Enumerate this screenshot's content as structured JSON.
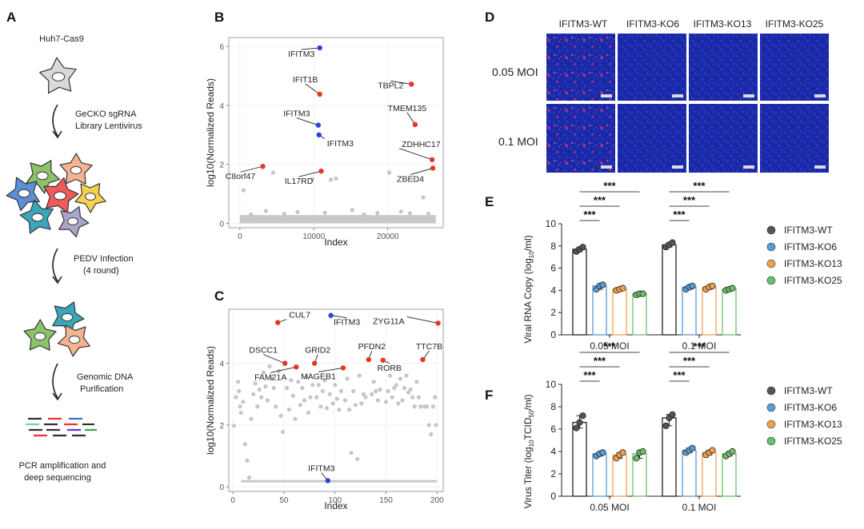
{
  "panel_letters": {
    "A": "A",
    "B": "B",
    "C": "C",
    "D": "D",
    "E": "E",
    "F": "F"
  },
  "workflow": {
    "cell_line": "Huh7-Cas9",
    "step1_line1": "GeCKO sgRNA",
    "step1_line2": "Library Lentivirus",
    "step2_line1": "PEDV  Infection",
    "step2_line2": "(4 round)",
    "step3_line1": "Genomic DNA",
    "step3_line2": "Purification",
    "final_line1": "PCR amplification and",
    "final_line2": "deep sequencing",
    "colors": {
      "cell_gray": "#d9d9d9",
      "green": "#8dc26a",
      "orange": "#f3b48f",
      "blue": "#5b8fd6",
      "red": "#ef5a5a",
      "yellow": "#f5d24c",
      "teal": "#3aa6b9",
      "lavender": "#a8a6c6"
    }
  },
  "panelD": {
    "col_headers": [
      "IFITM3-WT",
      "IFITM3-KO6",
      "IFITM3-KO13",
      "IFITM3-KO25"
    ],
    "row_labels": [
      "0.05 MOI",
      "0.1 MOI"
    ]
  },
  "chart_data": [
    {
      "id": "B",
      "type": "scatter",
      "title": "",
      "xlabel": "Index",
      "ylabel": "log10(Normalized Reads)",
      "xlim": [
        -1500,
        27500
      ],
      "ylim": [
        -0.15,
        6.3
      ],
      "xticks": [
        0,
        10000,
        20000
      ],
      "yticks": [
        0,
        2,
        4,
        6
      ],
      "highlighted": [
        {
          "label": "IFITM3",
          "x": 10800,
          "y": 5.95,
          "color": "#2b44d6"
        },
        {
          "label": "IFIT1B",
          "x": 10800,
          "y": 4.38,
          "color": "#e8361e"
        },
        {
          "label": "TBPL2",
          "x": 23200,
          "y": 4.72,
          "color": "#e8361e"
        },
        {
          "label": "IFITM3",
          "x": 10600,
          "y": 3.33,
          "color": "#2b44d6"
        },
        {
          "label": "IFITM3",
          "x": 10700,
          "y": 3.0,
          "color": "#2b44d6"
        },
        {
          "label": "TMEM135",
          "x": 23700,
          "y": 3.35,
          "color": "#e8361e"
        },
        {
          "label": "C8orf47",
          "x": 3100,
          "y": 1.93,
          "color": "#e8361e"
        },
        {
          "label": "IL17RD",
          "x": 11000,
          "y": 1.77,
          "color": "#e8361e"
        },
        {
          "label": "ZDHHC17",
          "x": 26000,
          "y": 2.16,
          "color": "#e8361e"
        },
        {
          "label": "ZBED4",
          "x": 26100,
          "y": 1.87,
          "color": "#e8361e"
        }
      ],
      "background_points": [
        [
          500,
          1.12
        ],
        [
          4500,
          1.72
        ],
        [
          9800,
          1.5
        ],
        [
          12300,
          1.48
        ],
        [
          13000,
          1.52
        ],
        [
          20200,
          1.72
        ],
        [
          24800,
          0.88
        ],
        [
          3500,
          0.42
        ],
        [
          7800,
          0.38
        ],
        [
          15200,
          0.45
        ],
        [
          18600,
          0.35
        ],
        [
          21800,
          0.4
        ],
        [
          25500,
          0.33
        ],
        [
          1500,
          0.3
        ],
        [
          6000,
          0.32
        ],
        [
          11500,
          0.36
        ],
        [
          16800,
          0.3
        ],
        [
          23000,
          0.34
        ]
      ],
      "baseline_band": {
        "x_from": 0,
        "x_to": 26500,
        "y_from": 0,
        "y_to": 0.28
      }
    },
    {
      "id": "C",
      "type": "scatter",
      "title": "",
      "xlabel": "Index",
      "ylabel": "log10(Normalized Reads)",
      "xlim": [
        -4,
        206
      ],
      "ylim": [
        -0.15,
        5.75
      ],
      "xticks": [
        0,
        50,
        100,
        150,
        200
      ],
      "yticks": [
        0,
        2,
        4
      ],
      "highlighted": [
        {
          "label": "CUL7",
          "x": 44,
          "y": 5.32,
          "color": "#e8361e"
        },
        {
          "label": "IFITM3",
          "x": 96,
          "y": 5.55,
          "color": "#2b44d6"
        },
        {
          "label": "ZYG11A",
          "x": 201,
          "y": 5.3,
          "color": "#e8361e"
        },
        {
          "label": "DSCC1",
          "x": 51,
          "y": 4.0,
          "color": "#e8361e"
        },
        {
          "label": "GRID2",
          "x": 80,
          "y": 4.0,
          "color": "#e8361e"
        },
        {
          "label": "PFDN2",
          "x": 133,
          "y": 4.12,
          "color": "#e8361e"
        },
        {
          "label": "TTC7B",
          "x": 186,
          "y": 4.12,
          "color": "#e8361e"
        },
        {
          "label": "FAM21A",
          "x": 62,
          "y": 3.88,
          "color": "#e8361e"
        },
        {
          "label": "MAGEB1",
          "x": 108,
          "y": 3.85,
          "color": "#e8361e"
        },
        {
          "label": "RORB",
          "x": 147,
          "y": 4.1,
          "color": "#e8361e"
        },
        {
          "label": "IFITM3",
          "x": 93,
          "y": 0.2,
          "color": "#2b44d6"
        }
      ],
      "background_points": [
        [
          1,
          1.98
        ],
        [
          3,
          2.9
        ],
        [
          5,
          3.4
        ],
        [
          6,
          3.1
        ],
        [
          7,
          2.6
        ],
        [
          8,
          2.4
        ],
        [
          10,
          2.75
        ],
        [
          12,
          1.38
        ],
        [
          14,
          0.85
        ],
        [
          16,
          0.3
        ],
        [
          18,
          2.2
        ],
        [
          20,
          3.0
        ],
        [
          22,
          3.35
        ],
        [
          24,
          2.6
        ],
        [
          26,
          3.15
        ],
        [
          28,
          2.9
        ],
        [
          30,
          3.7
        ],
        [
          32,
          3.25
        ],
        [
          34,
          2.8
        ],
        [
          36,
          3.9
        ],
        [
          38,
          3.5
        ],
        [
          40,
          3.2
        ],
        [
          42,
          2.6
        ],
        [
          45,
          3.75
        ],
        [
          47,
          2.3
        ],
        [
          49,
          1.78
        ],
        [
          53,
          3.2
        ],
        [
          55,
          2.5
        ],
        [
          57,
          3.45
        ],
        [
          59,
          2.95
        ],
        [
          61,
          2.2
        ],
        [
          64,
          3.4
        ],
        [
          66,
          2.65
        ],
        [
          68,
          3.2
        ],
        [
          70,
          2.8
        ],
        [
          72,
          3.55
        ],
        [
          74,
          2.4
        ],
        [
          76,
          2.9
        ],
        [
          78,
          3.3
        ],
        [
          82,
          2.9
        ],
        [
          84,
          3.3
        ],
        [
          86,
          2.6
        ],
        [
          88,
          3.1
        ],
        [
          90,
          3.45
        ],
        [
          92,
          2.55
        ],
        [
          95,
          3.0
        ],
        [
          98,
          2.7
        ],
        [
          100,
          3.3
        ],
        [
          102,
          2.85
        ],
        [
          104,
          2.5
        ],
        [
          106,
          3.1
        ],
        [
          110,
          2.8
        ],
        [
          112,
          3.5
        ],
        [
          114,
          2.5
        ],
        [
          116,
          1.1
        ],
        [
          118,
          3.1
        ],
        [
          120,
          2.65
        ],
        [
          122,
          0.9
        ],
        [
          124,
          3.6
        ],
        [
          126,
          2.7
        ],
        [
          128,
          3.0
        ],
        [
          130,
          2.9
        ],
        [
          136,
          3.0
        ],
        [
          138,
          3.4
        ],
        [
          140,
          3.1
        ],
        [
          142,
          2.8
        ],
        [
          144,
          3.15
        ],
        [
          150,
          2.75
        ],
        [
          152,
          3.1
        ],
        [
          154,
          3.6
        ],
        [
          156,
          2.9
        ],
        [
          158,
          3.2
        ],
        [
          160,
          3.3
        ],
        [
          162,
          2.7
        ],
        [
          164,
          3.5
        ],
        [
          166,
          2.8
        ],
        [
          168,
          3.2
        ],
        [
          170,
          3.6
        ],
        [
          172,
          3.05
        ],
        [
          174,
          3.15
        ],
        [
          176,
          2.9
        ],
        [
          178,
          2.6
        ],
        [
          180,
          3.4
        ],
        [
          182,
          2.9
        ],
        [
          184,
          2.6
        ],
        [
          188,
          2.6
        ],
        [
          190,
          2.6
        ],
        [
          192,
          2.0
        ],
        [
          194,
          1.7
        ],
        [
          196,
          2.6
        ],
        [
          198,
          2.9
        ],
        [
          199,
          2.0
        ]
      ],
      "baseline_band": {
        "x_from": 8,
        "x_to": 200,
        "y_from": 0.18,
        "y_to": 0.22
      }
    },
    {
      "id": "E",
      "type": "bar",
      "title": "",
      "xlabel": "",
      "ylabel": "Viral RNA Copy (log10/ml)",
      "ylabel_main": "Viral RNA Copy (log",
      "ylabel_sub": "10",
      "ylabel_tail": "/ml)",
      "ylim": [
        0,
        10
      ],
      "yticks": [
        0,
        2,
        4,
        6,
        8,
        10
      ],
      "categories": [
        "0.05 MOI",
        "0.1 MOI"
      ],
      "series": [
        {
          "name": "IFITM3-WT",
          "color": "#555555",
          "values": [
            7.7,
            8.1
          ],
          "points": [
            [
              7.5,
              7.7,
              7.9
            ],
            [
              7.9,
              8.1,
              8.3
            ]
          ]
        },
        {
          "name": "IFITM3-KO6",
          "color": "#5b9bd5",
          "values": [
            4.4,
            4.3
          ],
          "points": [
            [
              4.1,
              4.4,
              4.5
            ],
            [
              4.1,
              4.3,
              4.4
            ]
          ]
        },
        {
          "name": "IFITM3-KO13",
          "color": "#f0a050",
          "values": [
            4.1,
            4.3
          ],
          "points": [
            [
              4.0,
              4.1,
              4.2
            ],
            [
              4.1,
              4.3,
              4.4
            ]
          ]
        },
        {
          "name": "IFITM3-KO25",
          "color": "#6bbf6b",
          "values": [
            3.7,
            4.1
          ],
          "points": [
            [
              3.6,
              3.7,
              3.7
            ],
            [
              4.0,
              4.1,
              4.2
            ]
          ]
        }
      ],
      "significance": [
        "***",
        "***",
        "***",
        "***",
        "***",
        "***"
      ]
    },
    {
      "id": "F",
      "type": "bar",
      "title": "",
      "xlabel": "",
      "ylabel": "Virus Titer (log10TCID50/ml)",
      "ylabel_main": "Virus Titer (log",
      "ylabel_sub": "10",
      "ylabel_mid": "TCID",
      "ylabel_sub2": "50",
      "ylabel_tail": "/ml)",
      "ylim": [
        0,
        10
      ],
      "yticks": [
        0,
        2,
        4,
        6,
        8,
        10
      ],
      "categories": [
        "0.05 MOI",
        "0.1 MOI"
      ],
      "series": [
        {
          "name": "IFITM3-WT",
          "color": "#555555",
          "values": [
            6.6,
            7.0
          ],
          "points": [
            [
              6.1,
              6.6,
              7.2
            ],
            [
              6.3,
              7.0,
              7.3
            ]
          ]
        },
        {
          "name": "IFITM3-KO6",
          "color": "#5b9bd5",
          "values": [
            3.8,
            4.1
          ],
          "points": [
            [
              3.6,
              3.8,
              3.9
            ],
            [
              3.9,
              4.1,
              4.3
            ]
          ]
        },
        {
          "name": "IFITM3-KO13",
          "color": "#f0a050",
          "values": [
            3.7,
            3.9
          ],
          "points": [
            [
              3.4,
              3.7,
              3.9
            ],
            [
              3.7,
              3.9,
              4.1
            ]
          ]
        },
        {
          "name": "IFITM3-KO25",
          "color": "#6bbf6b",
          "values": [
            3.8,
            3.8
          ],
          "points": [
            [
              3.4,
              3.9,
              4.0
            ],
            [
              3.6,
              3.8,
              4.0
            ]
          ]
        }
      ],
      "significance": [
        "***",
        "***",
        "***",
        "***",
        "***",
        "***"
      ]
    }
  ]
}
